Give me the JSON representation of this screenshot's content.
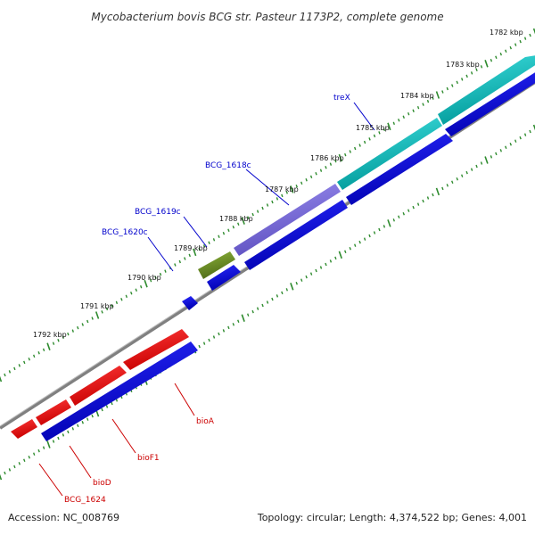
{
  "title": "Mycobacterium bovis BCG str. Pasteur 1173P2, complete genome",
  "footer": {
    "accession": "Accession: NC_008769",
    "topology": "Topology: circular; Length: 4,374,522 bp; Genes: 4,001"
  },
  "colors": {
    "forward_gene": "#00bfbf",
    "reverse_gene": "#0000e6",
    "highlight_red": "#ff0000",
    "purple_gene": "#8070d8",
    "olive_gene": "#6b8e23",
    "backbone": "#808080",
    "ticks": "#2e8b2e",
    "label_blue": "#0000cc",
    "label_red": "#cc0000"
  },
  "ticks": [
    {
      "label": "1782 kbp"
    },
    {
      "label": "1783 kbp"
    },
    {
      "label": "1784 kbp"
    },
    {
      "label": "1785 kbp"
    },
    {
      "label": "1786 kbp"
    },
    {
      "label": "1787 kbp"
    },
    {
      "label": "1788 kbp"
    },
    {
      "label": "1789 kbp"
    },
    {
      "label": "1790 kbp"
    },
    {
      "label": "1791 kbp"
    },
    {
      "label": "1792 kbp"
    }
  ],
  "gene_labels": [
    {
      "name": "treX",
      "color": "blue"
    },
    {
      "name": "BCG_1618c",
      "color": "blue"
    },
    {
      "name": "BCG_1619c",
      "color": "blue"
    },
    {
      "name": "BCG_1620c",
      "color": "blue"
    },
    {
      "name": "bioA",
      "color": "red"
    },
    {
      "name": "bioF1",
      "color": "red"
    },
    {
      "name": "bioD",
      "color": "red"
    },
    {
      "name": "BCG_1624",
      "color": "red"
    }
  ]
}
